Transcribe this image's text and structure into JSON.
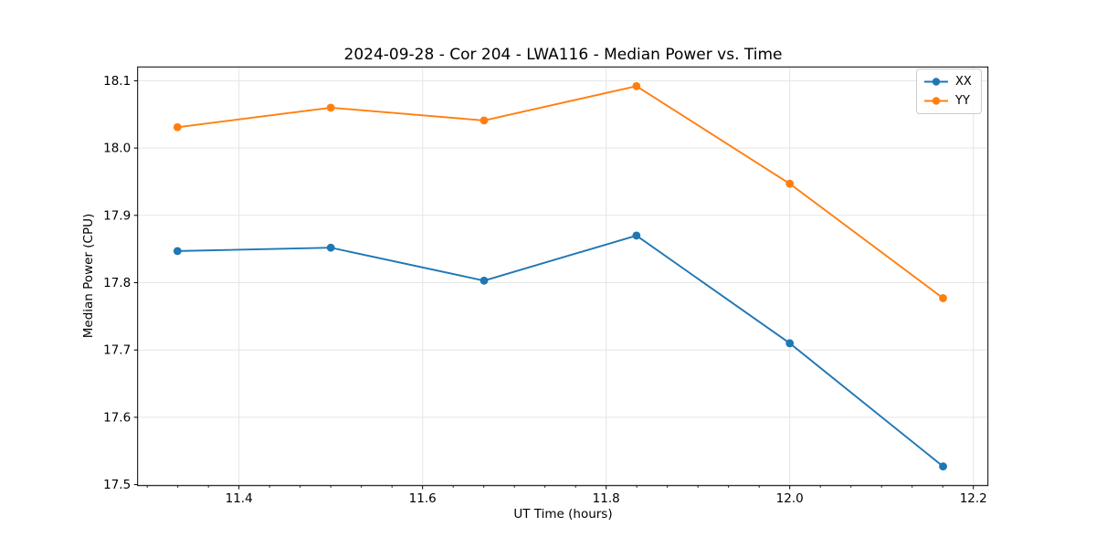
{
  "chart_data": {
    "type": "line",
    "title": "2024-09-28 - Cor 204 - LWA116 - Median Power vs. Time",
    "xlabel": "UT Time (hours)",
    "ylabel": "Median Power (CPU)",
    "x": [
      11.333,
      11.5,
      11.667,
      11.833,
      12.0,
      12.167
    ],
    "series": [
      {
        "name": "XX",
        "color": "#1f77b4",
        "values": [
          17.847,
          17.852,
          17.803,
          17.87,
          17.71,
          17.527
        ]
      },
      {
        "name": "YY",
        "color": "#ff7f0e",
        "values": [
          18.031,
          18.06,
          18.041,
          18.092,
          17.947,
          17.777
        ]
      }
    ],
    "xlim": [
      11.2896,
      12.2159
    ],
    "ylim": [
      17.4985,
      18.1205
    ],
    "xticks": [
      11.4,
      11.6,
      11.8,
      12.0,
      12.2
    ],
    "yticks": [
      17.5,
      17.6,
      17.7,
      17.8,
      17.9,
      18.0,
      18.1
    ],
    "x_minor_divisions_per_major": 6,
    "grid": true,
    "grid_color": "#e5e5e5",
    "axis_color": "#000000",
    "legend_position": "upper right",
    "marker": "o",
    "tick_format_decimals": 1
  }
}
